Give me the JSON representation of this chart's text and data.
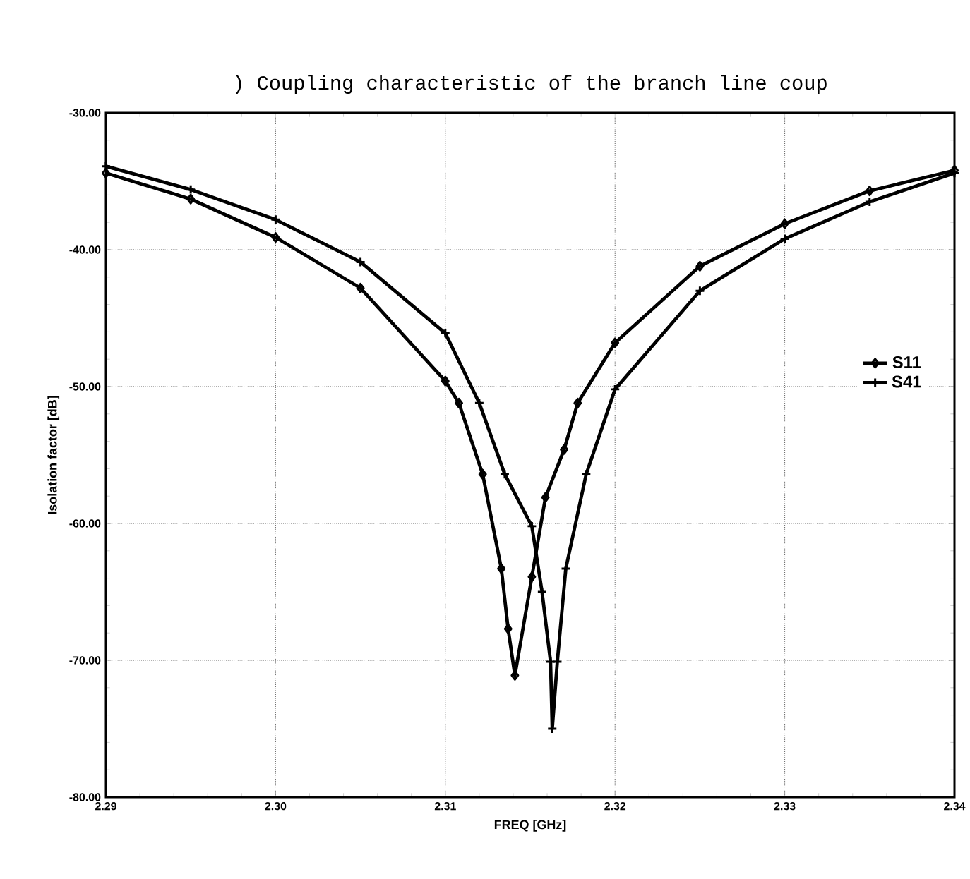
{
  "chart_data": {
    "type": "line",
    "title": ") Coupling characteristic of the branch line coup",
    "xlabel": "FREQ [GHz]",
    "ylabel": "Isolation factor [dB]",
    "xlim": [
      2.29,
      2.34
    ],
    "ylim": [
      -80,
      -30
    ],
    "xticks": [
      {
        "value": 2.29,
        "label": "2.29"
      },
      {
        "value": 2.3,
        "label": "2.30"
      },
      {
        "value": 2.31,
        "label": "2.31"
      },
      {
        "value": 2.32,
        "label": "2.32"
      },
      {
        "value": 2.33,
        "label": "2.33"
      },
      {
        "value": 2.34,
        "label": "2.34"
      }
    ],
    "yticks": [
      {
        "value": -80,
        "label": "-80.00"
      },
      {
        "value": -70,
        "label": "-70.00"
      },
      {
        "value": -60,
        "label": "-60.00"
      },
      {
        "value": -50,
        "label": "-50.00"
      },
      {
        "value": -40,
        "label": "-40.00"
      },
      {
        "value": -30,
        "label": "-30.00"
      }
    ],
    "grid": true,
    "legend": "right",
    "line_style": "solid",
    "series": [
      {
        "name": "S11",
        "color": "#000000",
        "marker": "diamond",
        "x": [
          2.29,
          2.295,
          2.3,
          2.305,
          2.31,
          2.3108,
          2.3122,
          2.3133,
          2.3137,
          2.3141,
          2.3151,
          2.3159,
          2.317,
          2.3178,
          2.32,
          2.325,
          2.33,
          2.335,
          2.34
        ],
        "values": [
          -34.4,
          -36.3,
          -39.1,
          -42.8,
          -49.6,
          -51.2,
          -56.4,
          -63.3,
          -67.7,
          -71.1,
          -63.9,
          -58.1,
          -54.6,
          -51.2,
          -46.8,
          -41.2,
          -38.1,
          -35.7,
          -34.2
        ]
      },
      {
        "name": "S41",
        "color": "#000000",
        "marker": "cross",
        "x": [
          2.29,
          2.295,
          2.3,
          2.305,
          2.31,
          2.312,
          2.3135,
          2.3151,
          2.3157,
          2.3162,
          2.3163,
          2.3166,
          2.3171,
          2.3183,
          2.32,
          2.325,
          2.33,
          2.335,
          2.34
        ],
        "values": [
          -33.9,
          -35.6,
          -37.8,
          -40.9,
          -46.1,
          -51.2,
          -56.4,
          -60.2,
          -65.0,
          -70.1,
          -75.0,
          -70.1,
          -63.3,
          -56.4,
          -50.2,
          -43.0,
          -39.2,
          -36.5,
          -34.4
        ]
      }
    ]
  }
}
